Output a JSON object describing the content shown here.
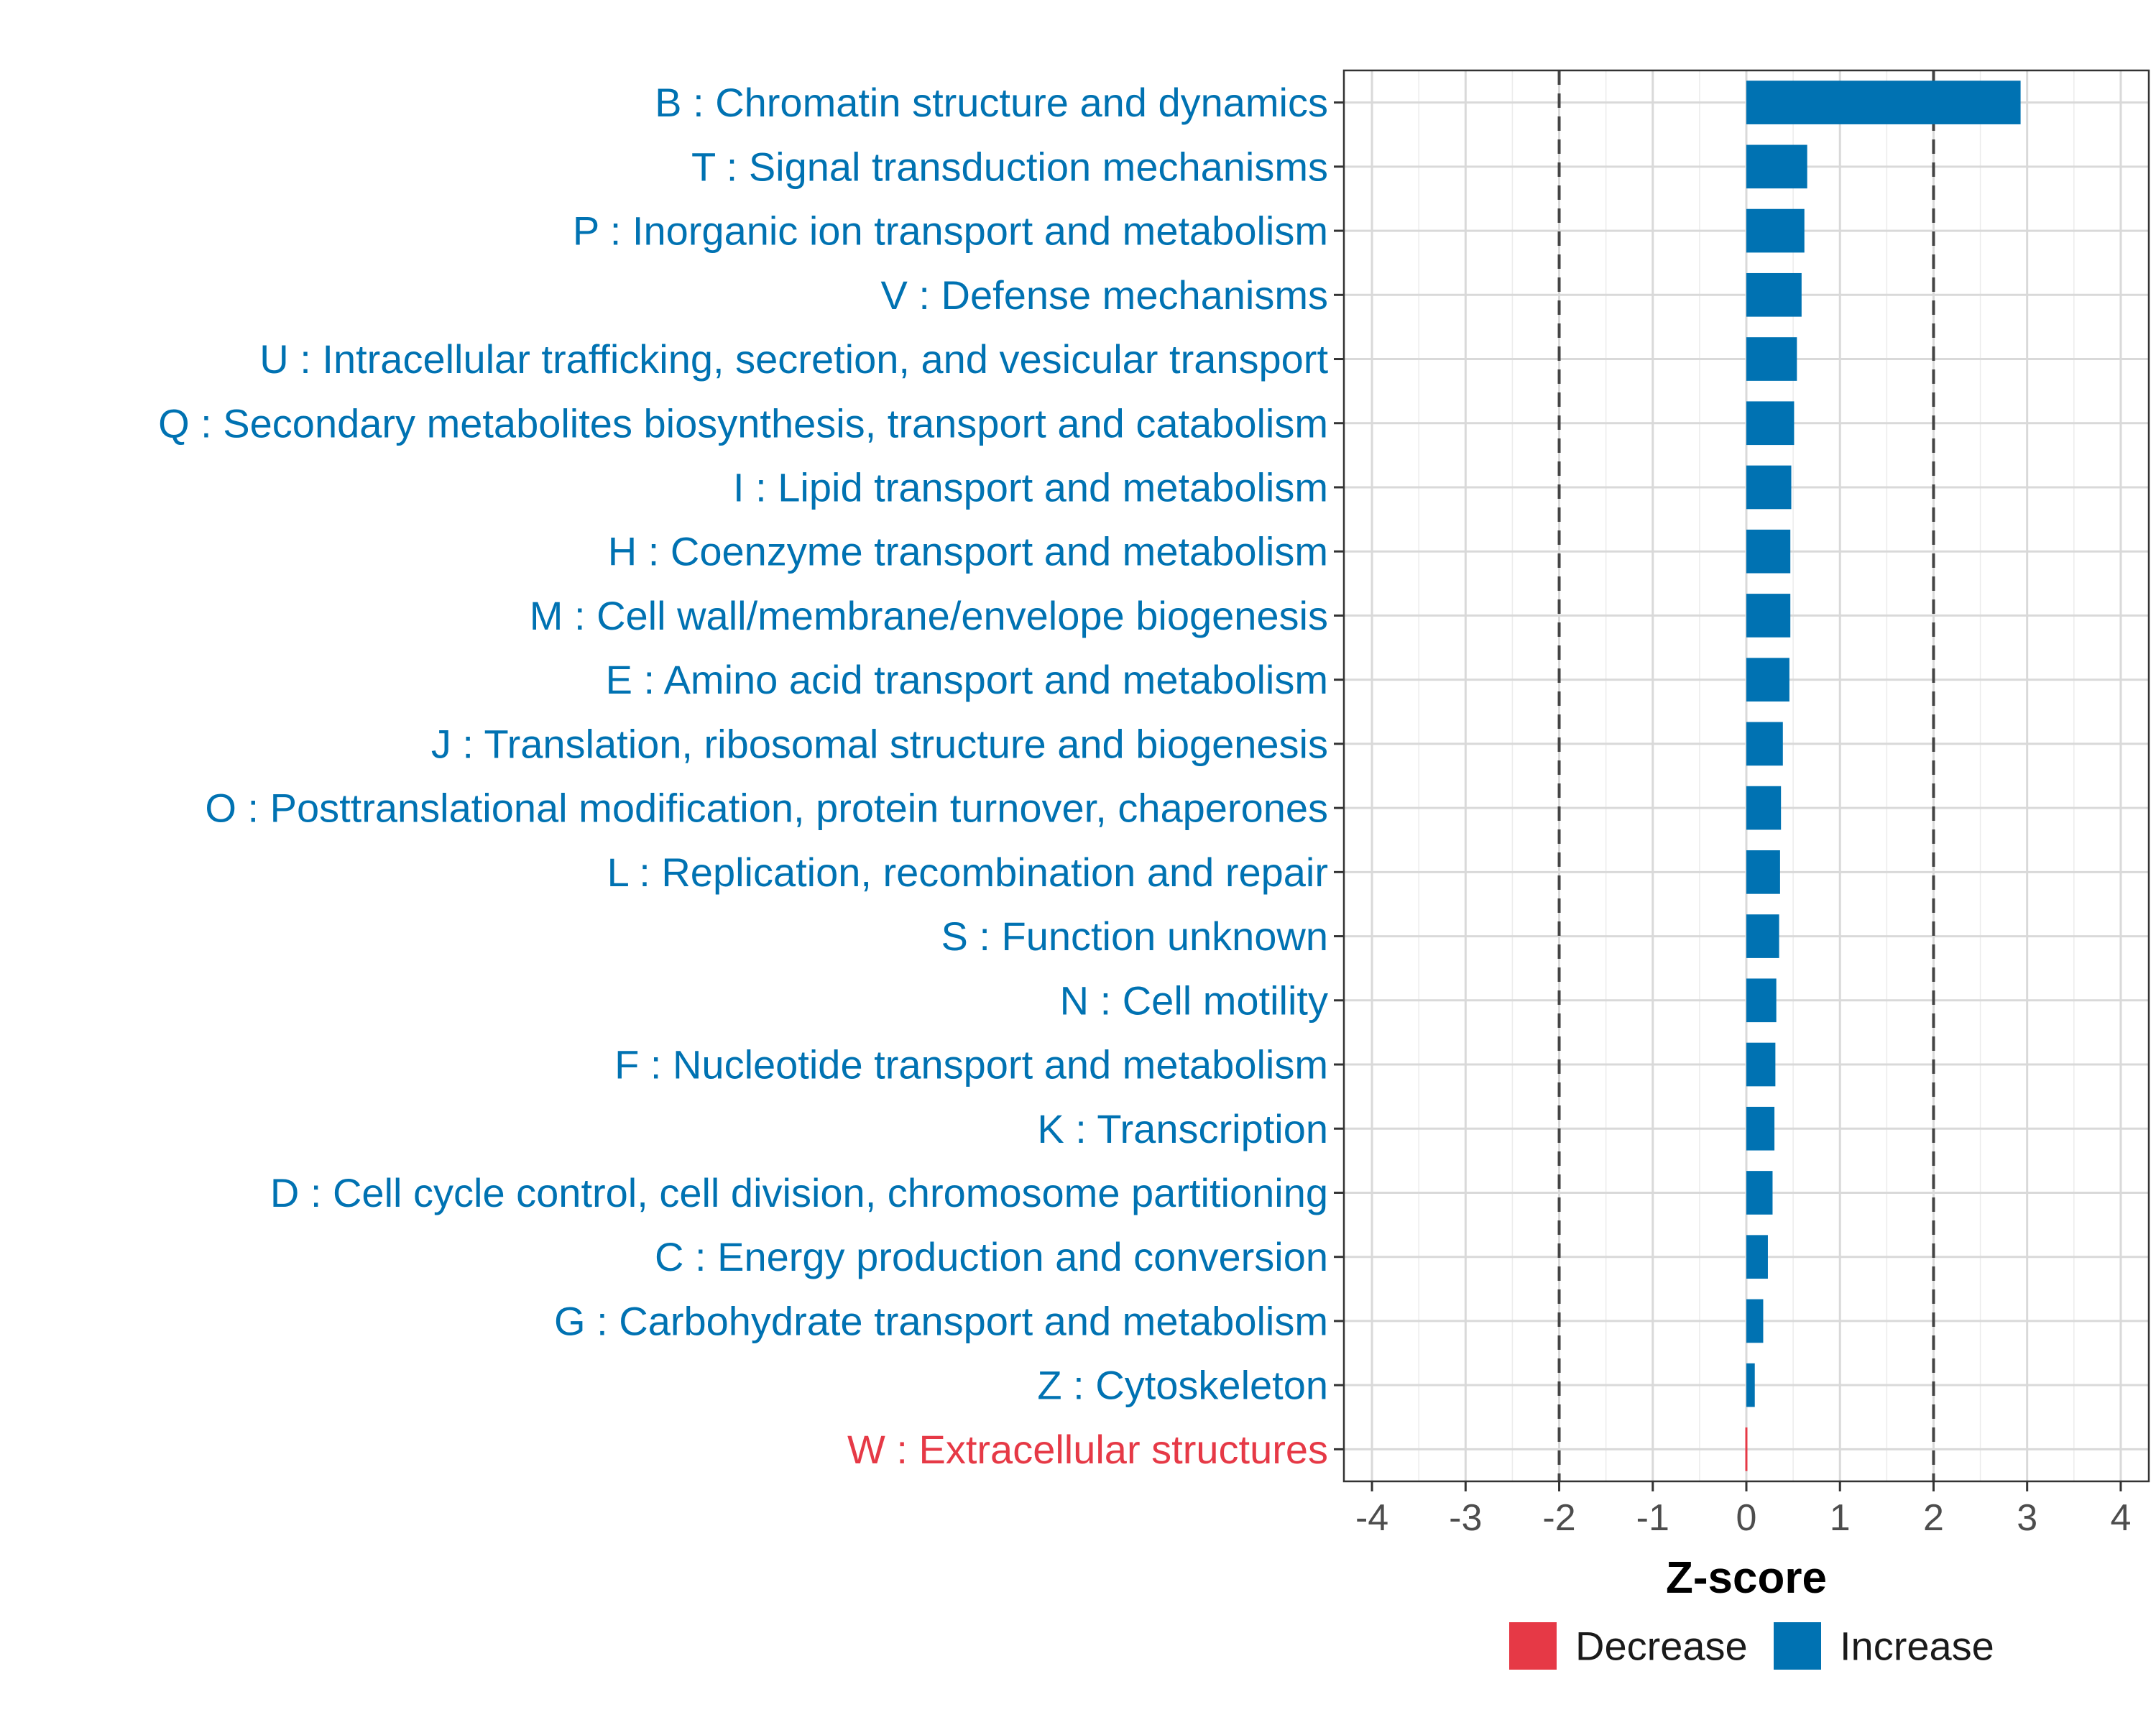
{
  "chart_data": {
    "type": "bar",
    "orientation": "horizontal",
    "categories": [
      "B : Chromatin structure and dynamics",
      "T : Signal transduction mechanisms",
      "P : Inorganic ion transport and metabolism",
      "V : Defense mechanisms",
      "U : Intracellular trafficking, secretion, and vesicular transport",
      "Q : Secondary metabolites biosynthesis, transport and catabolism",
      "I : Lipid transport and metabolism",
      "H : Coenzyme transport and metabolism",
      "M : Cell wall/membrane/envelope biogenesis",
      "E : Amino acid transport and metabolism",
      "J : Translation, ribosomal structure and biogenesis",
      "O : Posttranslational modification, protein turnover, chaperones",
      "L : Replication, recombination and repair",
      "S : Function unknown",
      "N : Cell motility",
      "F : Nucleotide transport and metabolism",
      "K : Transcription",
      "D : Cell cycle control, cell division, chromosome partitioning",
      "C : Energy production and conversion",
      "G : Carbohydrate transport and metabolism",
      "Z : Cytoskeleton",
      "W : Extracellular structures"
    ],
    "values": [
      2.93,
      0.65,
      0.62,
      0.59,
      0.54,
      0.51,
      0.48,
      0.47,
      0.47,
      0.46,
      0.39,
      0.37,
      0.36,
      0.35,
      0.32,
      0.31,
      0.3,
      0.28,
      0.23,
      0.18,
      0.09,
      -0.01
    ],
    "groups": [
      "Increase",
      "Increase",
      "Increase",
      "Increase",
      "Increase",
      "Increase",
      "Increase",
      "Increase",
      "Increase",
      "Increase",
      "Increase",
      "Increase",
      "Increase",
      "Increase",
      "Increase",
      "Increase",
      "Increase",
      "Increase",
      "Increase",
      "Increase",
      "Increase",
      "Decrease"
    ],
    "xlabel": "Z-score",
    "ylabel": "",
    "xlim": [
      -4.3,
      4.3
    ],
    "xticks": [
      -4,
      -3,
      -2,
      -1,
      0,
      1,
      2,
      3,
      4
    ],
    "xtick_labels": [
      "-4",
      "-3",
      "-2",
      "-1",
      "0",
      "1",
      "2",
      "3",
      "4"
    ],
    "reference_lines": [
      -2,
      2
    ],
    "legend": {
      "position": "bottom",
      "entries": [
        {
          "label": "Decrease",
          "color": "#e63946"
        },
        {
          "label": "Increase",
          "color": "#0072b2"
        }
      ]
    },
    "grid": true
  }
}
